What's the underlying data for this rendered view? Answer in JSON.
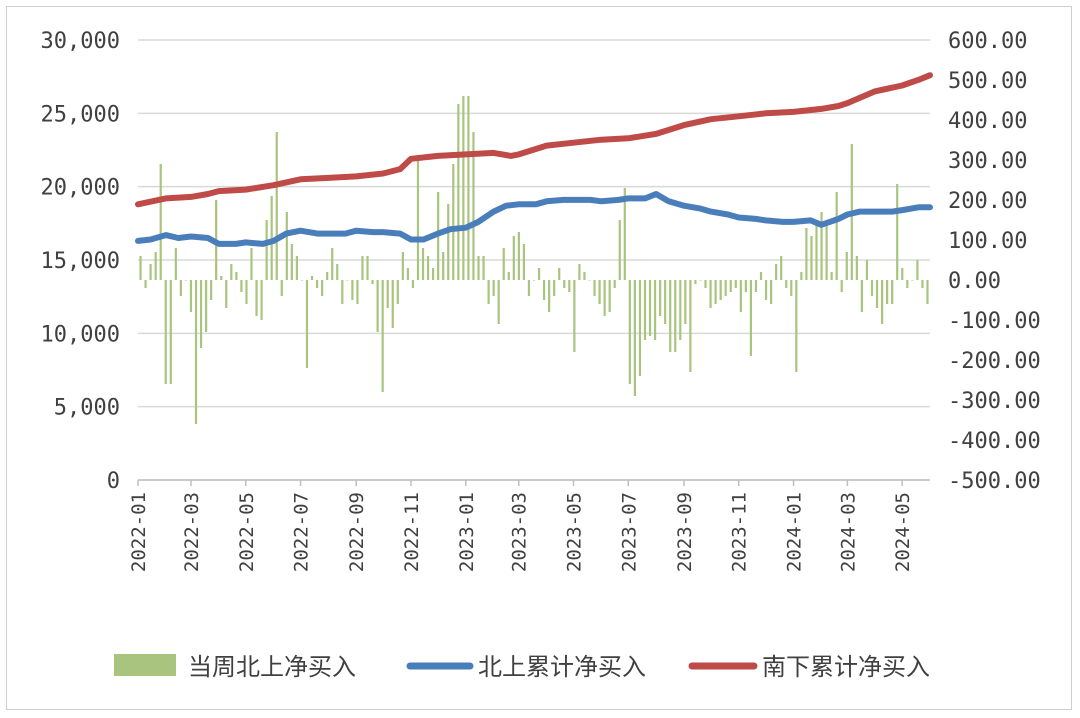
{
  "chart_data": {
    "type": "bar+line",
    "title": "",
    "left_axis": {
      "ylim": [
        0,
        30000
      ],
      "ticks": [
        0,
        5000,
        10000,
        15000,
        20000,
        25000,
        30000
      ],
      "tick_labels": [
        "0",
        "5,000",
        "10,000",
        "15,000",
        "20,000",
        "25,000",
        "30,000"
      ]
    },
    "right_axis": {
      "ylim": [
        -500,
        600
      ],
      "ticks": [
        -500,
        -400,
        -300,
        -200,
        -100,
        0,
        100,
        200,
        300,
        400,
        500,
        600
      ],
      "tick_labels": [
        "-500.00",
        "-400.00",
        "-300.00",
        "-200.00",
        "-100.00",
        "0.00",
        "100.00",
        "200.00",
        "300.00",
        "400.00",
        "500.00",
        "600.00"
      ]
    },
    "x_axis": {
      "start": "2022-01",
      "end": "2024-06",
      "ticks": [
        "2022-01",
        "2022-03",
        "2022-05",
        "2022-07",
        "2022-09",
        "2022-11",
        "2023-01",
        "2023-03",
        "2023-05",
        "2023-07",
        "2023-09",
        "2023-11",
        "2024-01",
        "2024-03",
        "2024-05"
      ]
    },
    "grid": true,
    "legend_position": "bottom",
    "colors": {
      "weekly_bar": "#a9c47f",
      "north_line": "#4a7ebb",
      "south_line": "#be4b48",
      "grid": "#d9d9d9",
      "axis": "#404040"
    },
    "series": [
      {
        "name": "当周北上净买入",
        "type": "bar",
        "axis": "right",
        "values": [
          60,
          -20,
          40,
          70,
          290,
          -260,
          -260,
          80,
          -40,
          0,
          -80,
          -360,
          -170,
          -130,
          -50,
          200,
          10,
          -70,
          40,
          20,
          -30,
          -60,
          80,
          -90,
          -100,
          150,
          210,
          370,
          -40,
          170,
          90,
          60,
          0,
          -220,
          10,
          -20,
          -40,
          20,
          80,
          40,
          -60,
          0,
          -50,
          -60,
          60,
          60,
          -10,
          -130,
          -280,
          -70,
          -120,
          -60,
          70,
          30,
          -20,
          310,
          80,
          60,
          30,
          220,
          70,
          190,
          290,
          440,
          460,
          460,
          370,
          60,
          60,
          -60,
          -40,
          -110,
          80,
          20,
          110,
          120,
          90,
          -40,
          0,
          30,
          -50,
          -80,
          -40,
          30,
          -20,
          -30,
          -180,
          40,
          20,
          0,
          -40,
          -60,
          -90,
          -80,
          -20,
          150,
          230,
          -260,
          -290,
          -240,
          -150,
          -140,
          -150,
          -90,
          -110,
          -180,
          -180,
          -150,
          -110,
          -230,
          -10,
          0,
          -20,
          -70,
          -60,
          -50,
          -40,
          -30,
          -20,
          -80,
          -30,
          -190,
          -30,
          20,
          -50,
          -60,
          40,
          60,
          -20,
          -40,
          -230,
          20,
          130,
          110,
          140,
          170,
          140,
          20,
          220,
          -30,
          70,
          340,
          60,
          -80,
          50,
          -40,
          -70,
          -110,
          -60,
          -60,
          240,
          30,
          -20,
          0,
          50,
          -20,
          -60
        ]
      },
      {
        "name": "北上累计净买入",
        "type": "line",
        "axis": "left",
        "points": [
          [
            "2022-01",
            16300
          ],
          [
            "2022-01-15",
            16400
          ],
          [
            "2022-02",
            16700
          ],
          [
            "2022-02-15",
            16500
          ],
          [
            "2022-03",
            16600
          ],
          [
            "2022-03-20",
            16500
          ],
          [
            "2022-04",
            16100
          ],
          [
            "2022-04-20",
            16100
          ],
          [
            "2022-05",
            16200
          ],
          [
            "2022-05-20",
            16100
          ],
          [
            "2022-06",
            16300
          ],
          [
            "2022-06-15",
            16800
          ],
          [
            "2022-07",
            17000
          ],
          [
            "2022-07-20",
            16800
          ],
          [
            "2022-08",
            16800
          ],
          [
            "2022-08-20",
            16800
          ],
          [
            "2022-09",
            17000
          ],
          [
            "2022-09-20",
            16900
          ],
          [
            "2022-10",
            16900
          ],
          [
            "2022-10-20",
            16800
          ],
          [
            "2022-11",
            16400
          ],
          [
            "2022-11-15",
            16400
          ],
          [
            "2022-12",
            16800
          ],
          [
            "2022-12-15",
            17100
          ],
          [
            "2023-01",
            17200
          ],
          [
            "2023-01-15",
            17600
          ],
          [
            "2023-02",
            18300
          ],
          [
            "2023-02-15",
            18700
          ],
          [
            "2023-03",
            18800
          ],
          [
            "2023-03-20",
            18800
          ],
          [
            "2023-04",
            19000
          ],
          [
            "2023-04-20",
            19100
          ],
          [
            "2023-05",
            19100
          ],
          [
            "2023-05-20",
            19100
          ],
          [
            "2023-06",
            19000
          ],
          [
            "2023-06-20",
            19100
          ],
          [
            "2023-07",
            19200
          ],
          [
            "2023-07-20",
            19200
          ],
          [
            "2023-08",
            19500
          ],
          [
            "2023-08-15",
            19000
          ],
          [
            "2023-09",
            18700
          ],
          [
            "2023-09-20",
            18500
          ],
          [
            "2023-10",
            18300
          ],
          [
            "2023-10-20",
            18100
          ],
          [
            "2023-11",
            17900
          ],
          [
            "2023-11-20",
            17800
          ],
          [
            "2023-12",
            17700
          ],
          [
            "2023-12-20",
            17600
          ],
          [
            "2024-01",
            17600
          ],
          [
            "2024-01-20",
            17700
          ],
          [
            "2024-02",
            17400
          ],
          [
            "2024-02-20",
            17800
          ],
          [
            "2024-03",
            18100
          ],
          [
            "2024-03-15",
            18300
          ],
          [
            "2024-04",
            18300
          ],
          [
            "2024-04-20",
            18300
          ],
          [
            "2024-05",
            18400
          ],
          [
            "2024-05-20",
            18600
          ],
          [
            "2024-06",
            18600
          ]
        ]
      },
      {
        "name": "南下累计净买入",
        "type": "line",
        "axis": "left",
        "points": [
          [
            "2022-01",
            18800
          ],
          [
            "2022-02",
            19200
          ],
          [
            "2022-03",
            19300
          ],
          [
            "2022-03-20",
            19500
          ],
          [
            "2022-04",
            19700
          ],
          [
            "2022-05",
            19800
          ],
          [
            "2022-06",
            20100
          ],
          [
            "2022-07",
            20500
          ],
          [
            "2022-08",
            20600
          ],
          [
            "2022-09",
            20700
          ],
          [
            "2022-10",
            20900
          ],
          [
            "2022-10-20",
            21200
          ],
          [
            "2022-11",
            21900
          ],
          [
            "2022-12",
            22100
          ],
          [
            "2023-01",
            22200
          ],
          [
            "2023-02",
            22300
          ],
          [
            "2023-02-20",
            22100
          ],
          [
            "2023-03",
            22200
          ],
          [
            "2023-04",
            22800
          ],
          [
            "2023-05",
            23000
          ],
          [
            "2023-06",
            23200
          ],
          [
            "2023-07",
            23300
          ],
          [
            "2023-08",
            23600
          ],
          [
            "2023-09",
            24200
          ],
          [
            "2023-10",
            24600
          ],
          [
            "2023-11",
            24800
          ],
          [
            "2023-12",
            25000
          ],
          [
            "2024-01",
            25100
          ],
          [
            "2024-02",
            25300
          ],
          [
            "2024-02-20",
            25500
          ],
          [
            "2024-03",
            25700
          ],
          [
            "2024-04",
            26500
          ],
          [
            "2024-05",
            26900
          ],
          [
            "2024-05-20",
            27300
          ],
          [
            "2024-06",
            27600
          ]
        ]
      }
    ],
    "legend": [
      "当周北上净买入",
      "北上累计净买入",
      "南下累计净买入"
    ]
  }
}
